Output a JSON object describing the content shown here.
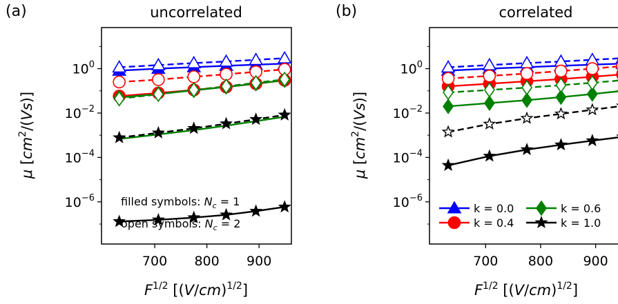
{
  "chart_data": [
    {
      "type": "line",
      "panel_label": "(a)",
      "title": "uncorrelated",
      "xlabel": "F^{1/2} [(V/cm)^{1/2}]",
      "ylabel": "μ [cm²/(Vs)]",
      "xlim": [
        598,
        962
      ],
      "ylim_log10": [
        -7.9,
        1.85
      ],
      "yscale": "log",
      "x_ticks": [
        700,
        800,
        900
      ],
      "y_ticks": [
        {
          "exp": 0,
          "base": "10",
          "sup": "0"
        },
        {
          "exp": -2,
          "base": "10",
          "sup": "−2"
        },
        {
          "exp": -4,
          "base": "10",
          "sup": "−4"
        },
        {
          "exp": -6,
          "base": "10",
          "sup": "−6"
        }
      ],
      "annotations": [
        {
          "prefix": "filled symbols: ",
          "var": "N",
          "sub": "c",
          "suffix": " = 1"
        },
        {
          "prefix": "open symbols: ",
          "var": "N",
          "sub": "c",
          "suffix": " = 2"
        }
      ],
      "x": [
        632,
        707,
        775,
        837,
        894,
        949
      ],
      "series": [
        {
          "k": "0.0",
          "color": "#0000ff",
          "marker": "triangle",
          "fill": "filled",
          "dash": "solid",
          "values": [
            0.82,
            1.0,
            1.17,
            1.35,
            1.51,
            1.68
          ]
        },
        {
          "k": "0.0",
          "color": "#0000ff",
          "marker": "triangle",
          "fill": "open",
          "dash": "dashed",
          "values": [
            1.15,
            1.45,
            1.78,
            2.1,
            2.5,
            2.95
          ]
        },
        {
          "k": "0.4",
          "color": "#ff0000",
          "marker": "circle",
          "fill": "filled",
          "dash": "solid",
          "values": [
            0.058,
            0.08,
            0.11,
            0.15,
            0.21,
            0.3
          ]
        },
        {
          "k": "0.4",
          "color": "#ff0000",
          "marker": "circle",
          "fill": "open",
          "dash": "dashed",
          "values": [
            0.25,
            0.32,
            0.43,
            0.56,
            0.72,
            0.93
          ]
        },
        {
          "k": "0.6",
          "color": "#008000",
          "marker": "diamond",
          "fill": "filled",
          "dash": "solid",
          "values": [
            0.05,
            0.072,
            0.105,
            0.15,
            0.21,
            0.3
          ]
        },
        {
          "k": "0.6",
          "color": "#008000",
          "marker": "diamond",
          "fill": "open",
          "dash": "dashed",
          "values": [
            0.044,
            0.07,
            0.11,
            0.16,
            0.23,
            0.33
          ]
        },
        {
          "k": "1.0",
          "color": "#008000",
          "marker": "none",
          "fill": "none",
          "dash": "solid",
          "values": [
            0.00068,
            0.00108,
            0.0017,
            0.0027,
            0.0043,
            0.0068
          ]
        },
        {
          "k": "1.0",
          "color": "#000000",
          "marker": "star",
          "fill": "filled",
          "dash": "dashed",
          "values": [
            0.00078,
            0.00128,
            0.00205,
            0.0033,
            0.0052,
            0.0082
          ]
        },
        {
          "k": "1.0",
          "color": "#000000",
          "marker": "star",
          "fill": "filled",
          "dash": "solid",
          "values": [
            1.3e-07,
            1.55e-07,
            1.95e-07,
            2.6e-07,
            3.8e-07,
            5.9e-07
          ]
        }
      ]
    },
    {
      "type": "line",
      "panel_label": "(b)",
      "title": "correlated",
      "xlabel": "F^{1/2} [(V/cm)^{1/2}]",
      "ylabel": "μ [cm²/(Vs)]",
      "xlim": [
        598,
        962
      ],
      "ylim_log10": [
        -7.9,
        1.85
      ],
      "yscale": "log",
      "x_ticks": [
        700,
        800,
        900
      ],
      "y_ticks": [
        {
          "exp": 0,
          "base": "10",
          "sup": "0"
        },
        {
          "exp": -2,
          "base": "10",
          "sup": "−2"
        },
        {
          "exp": -4,
          "base": "10",
          "sup": "−4"
        },
        {
          "exp": -6,
          "base": "10",
          "sup": "−6"
        }
      ],
      "legend": {
        "position": "bottom-left",
        "entries": [
          {
            "label": "k = 0.0",
            "color": "#0000ff",
            "marker": "triangle"
          },
          {
            "label": "k = 0.6",
            "color": "#008000",
            "marker": "diamond"
          },
          {
            "label": "k = 0.4",
            "color": "#ff0000",
            "marker": "circle"
          },
          {
            "label": "k = 1.0",
            "color": "#000000",
            "marker": "star"
          }
        ]
      },
      "x": [
        632,
        707,
        775,
        837,
        894,
        949
      ],
      "series": [
        {
          "k": "0.0",
          "color": "#0000ff",
          "marker": "triangle",
          "fill": "filled",
          "dash": "solid",
          "values": [
            0.82,
            1.0,
            1.17,
            1.35,
            1.51,
            1.68
          ]
        },
        {
          "k": "0.0",
          "color": "#0000ff",
          "marker": "triangle",
          "fill": "open",
          "dash": "dashed",
          "values": [
            1.15,
            1.45,
            1.78,
            2.1,
            2.5,
            2.95
          ]
        },
        {
          "k": "0.4",
          "color": "#ff0000",
          "marker": "circle",
          "fill": "filled",
          "dash": "solid",
          "values": [
            0.16,
            0.21,
            0.27,
            0.34,
            0.43,
            0.55
          ]
        },
        {
          "k": "0.4",
          "color": "#ff0000",
          "marker": "circle",
          "fill": "open",
          "dash": "dashed",
          "values": [
            0.36,
            0.47,
            0.6,
            0.78,
            1.0,
            1.3
          ]
        },
        {
          "k": "0.6",
          "color": "#008000",
          "marker": "diamond",
          "fill": "filled",
          "dash": "solid",
          "values": [
            0.02,
            0.028,
            0.038,
            0.052,
            0.072,
            0.1
          ]
        },
        {
          "k": "0.6",
          "color": "#008000",
          "marker": "diamond",
          "fill": "open",
          "dash": "dashed",
          "values": [
            0.085,
            0.11,
            0.14,
            0.18,
            0.23,
            0.3
          ]
        },
        {
          "k": "1.0",
          "color": "#000000",
          "marker": "star",
          "fill": "open",
          "dash": "dashed",
          "values": [
            0.0014,
            0.0032,
            0.0058,
            0.0092,
            0.014,
            0.021
          ]
        },
        {
          "k": "1.0",
          "color": "#000000",
          "marker": "star",
          "fill": "filled",
          "dash": "solid",
          "values": [
            4.4e-05,
            0.000115,
            0.000225,
            0.00037,
            0.00057,
            0.00085
          ]
        }
      ]
    }
  ]
}
